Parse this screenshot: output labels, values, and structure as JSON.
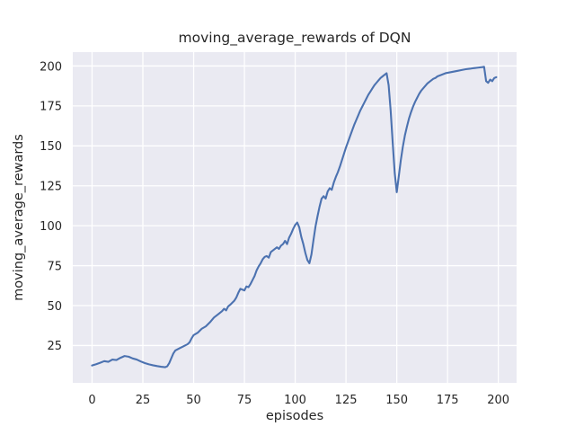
{
  "chart_data": {
    "type": "line",
    "title": "moving_average_rewards of DQN",
    "xlabel": "episodes",
    "ylabel": "moving_average_rewards",
    "x_ticks": [
      0,
      25,
      50,
      75,
      100,
      125,
      150,
      175,
      200
    ],
    "y_ticks": [
      25,
      50,
      75,
      100,
      125,
      150,
      175,
      200
    ],
    "xlim": [
      -9.5,
      209
    ],
    "ylim": [
      1.6,
      208.7
    ],
    "grid": true,
    "legend_position": "none",
    "styles": {
      "line_color": "#4c72b0",
      "panel_bg": "#eaeaf2",
      "grid_color": "#ffffff",
      "figure_bg": "#ffffff",
      "text_color": "#262626"
    },
    "series": [
      {
        "name": "moving_average_rewards",
        "x": [
          0,
          2,
          4,
          6,
          8,
          10,
          12,
          14,
          16,
          18,
          20,
          22,
          24,
          26,
          28,
          30,
          32,
          34,
          36,
          37,
          38,
          39,
          40,
          41,
          43,
          45,
          47,
          48,
          49,
          50,
          52,
          54,
          56,
          58,
          60,
          62,
          64,
          65,
          66,
          67,
          68,
          70,
          71,
          72,
          73,
          74,
          75,
          76,
          77,
          78,
          79,
          80,
          81,
          82,
          83,
          84,
          85,
          86,
          87,
          88,
          89,
          90,
          91,
          92,
          93,
          94,
          95,
          96,
          97,
          98,
          99,
          100,
          101,
          102,
          103,
          104,
          105,
          106,
          107,
          108,
          109,
          110,
          111,
          112,
          113,
          114,
          115,
          116,
          117,
          118,
          119,
          120,
          121,
          122,
          123,
          124,
          125,
          126,
          127,
          128,
          129,
          130,
          131,
          132,
          133,
          134,
          135,
          136,
          137,
          138,
          139,
          140,
          141,
          142,
          143,
          144,
          145,
          146,
          147,
          148,
          149,
          150,
          151,
          152,
          153,
          154,
          155,
          156,
          157,
          158,
          159,
          160,
          161,
          162,
          163,
          164,
          165,
          166,
          167,
          168,
          169,
          170,
          172,
          174,
          176,
          178,
          180,
          182,
          184,
          186,
          188,
          190,
          192,
          193,
          194,
          195,
          196,
          197,
          198,
          199
        ],
        "y": [
          12.5,
          13.3,
          14.2,
          15.2,
          14.8,
          16.2,
          15.9,
          17.3,
          18.4,
          18.0,
          16.9,
          16.2,
          15.0,
          14.0,
          13.2,
          12.6,
          12.1,
          11.7,
          11.4,
          12.0,
          14.0,
          17.0,
          20.0,
          21.9,
          23.2,
          24.5,
          25.8,
          27.0,
          29.5,
          31.5,
          33.0,
          35.5,
          37.0,
          39.5,
          42.5,
          44.5,
          46.5,
          48.0,
          47.0,
          49.5,
          50.5,
          53.0,
          55.0,
          58.0,
          60.5,
          60.0,
          59.5,
          62.0,
          61.5,
          63.5,
          66.0,
          68.5,
          72.0,
          74.5,
          76.5,
          79.0,
          80.5,
          81.0,
          80.0,
          83.5,
          84.5,
          85.5,
          86.5,
          85.5,
          87.5,
          88.5,
          90.5,
          88.5,
          92.5,
          95.0,
          98.0,
          100.5,
          102.0,
          99.0,
          93.0,
          88.5,
          83.0,
          78.5,
          76.5,
          82.0,
          91.0,
          99.5,
          106.0,
          112.0,
          117.0,
          118.5,
          117.0,
          121.5,
          123.5,
          122.5,
          127.0,
          130.5,
          133.5,
          137.0,
          141.0,
          145.0,
          149.0,
          152.5,
          156.0,
          159.5,
          163.0,
          166.0,
          169.0,
          172.0,
          174.5,
          177.0,
          179.5,
          182.0,
          184.0,
          186.0,
          188.0,
          189.5,
          191.0,
          192.5,
          193.5,
          194.5,
          195.5,
          188.0,
          172.0,
          152.0,
          133.0,
          121.0,
          131.0,
          141.0,
          149.5,
          156.5,
          162.0,
          167.0,
          171.0,
          174.5,
          177.5,
          180.0,
          182.5,
          184.5,
          186.0,
          187.5,
          189.0,
          190.0,
          191.0,
          192.0,
          192.5,
          193.5,
          194.5,
          195.5,
          196.0,
          196.5,
          197.0,
          197.5,
          198.0,
          198.3,
          198.7,
          199.0,
          199.3,
          199.5,
          190.5,
          189.5,
          191.5,
          190.5,
          192.5,
          193.0
        ]
      }
    ]
  }
}
